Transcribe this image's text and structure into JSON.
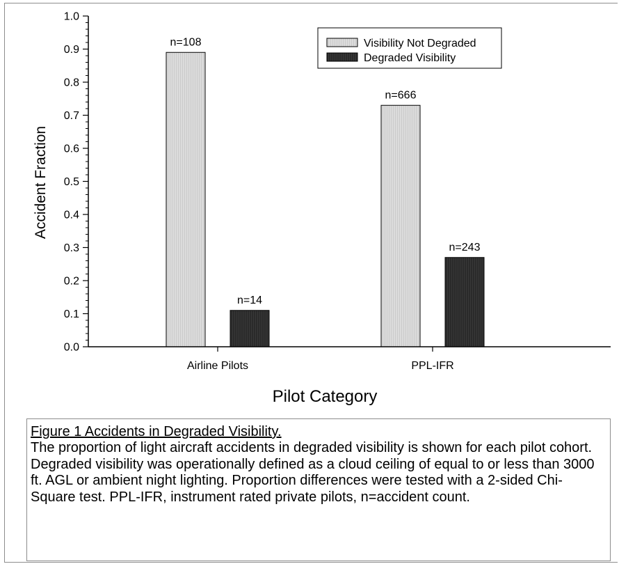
{
  "chart_data": {
    "type": "bar",
    "categories": [
      "Airline Pilots",
      "PPL-IFR"
    ],
    "series": [
      {
        "name": "Visibility Not Degraded",
        "values": [
          0.89,
          0.73
        ],
        "labels": [
          "n=108",
          "n=666"
        ],
        "color": "#d9d9d9"
      },
      {
        "name": "Degraded Visibility",
        "values": [
          0.11,
          0.27
        ],
        "labels": [
          "n=14",
          "n=243"
        ],
        "color": "#2b2b2b"
      }
    ],
    "xlabel": "Pilot Category",
    "ylabel": "Accident Fraction",
    "ylim": [
      0,
      1.0
    ],
    "yticks": [
      "0.0",
      "0.1",
      "0.2",
      "0.3",
      "0.4",
      "0.5",
      "0.6",
      "0.7",
      "0.8",
      "0.9",
      "1.0"
    ],
    "grid": false,
    "legend_position": "top-right"
  },
  "caption": {
    "title": "Figure 1 Accidents in Degraded Visibility.",
    "body": "The proportion of light aircraft accidents in degraded visibility is shown for each pilot cohort. Degraded visibility was operationally defined as a cloud ceiling of equal to or less than 3000 ft. AGL or ambient night lighting. Proportion differences were tested with a 2-sided Chi-Square test. PPL-IFR, instrument rated private pilots, n=accident count."
  }
}
